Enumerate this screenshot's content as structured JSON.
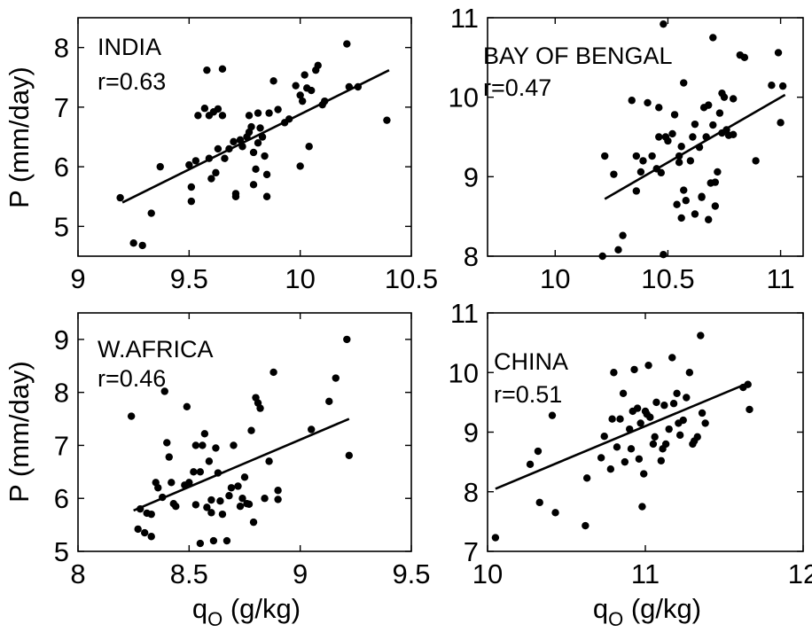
{
  "chart_data": [
    {
      "type": "scatter",
      "annotations": [
        "INDIA",
        "r=0.63"
      ],
      "xlabel": "",
      "ylabel": "P (mm/day)",
      "xlim": [
        9,
        10.5
      ],
      "ylim": [
        4.5,
        8.5
      ],
      "xticks": [
        "9",
        "9.5",
        "10",
        "10.5"
      ],
      "yticks": [
        "5",
        "6",
        "7",
        "8"
      ],
      "fit_line": [
        [
          9.2,
          5.4
        ],
        [
          10.4,
          7.62
        ]
      ],
      "points": [
        [
          9.19,
          5.48
        ],
        [
          9.25,
          4.72
        ],
        [
          9.29,
          4.68
        ],
        [
          9.33,
          5.22
        ],
        [
          9.37,
          6.0
        ],
        [
          9.5,
          6.03
        ],
        [
          9.51,
          5.66
        ],
        [
          9.51,
          5.42
        ],
        [
          9.53,
          6.1
        ],
        [
          9.54,
          6.86
        ],
        [
          9.57,
          6.98
        ],
        [
          9.58,
          7.62
        ],
        [
          9.59,
          6.86
        ],
        [
          9.59,
          6.14
        ],
        [
          9.6,
          5.8
        ],
        [
          9.61,
          6.92
        ],
        [
          9.62,
          5.9
        ],
        [
          9.63,
          6.97
        ],
        [
          9.63,
          6.3
        ],
        [
          9.65,
          7.64
        ],
        [
          9.65,
          6.86
        ],
        [
          9.66,
          6.14
        ],
        [
          9.68,
          6.3
        ],
        [
          9.7,
          6.42
        ],
        [
          9.71,
          5.55
        ],
        [
          9.71,
          5.5
        ],
        [
          9.73,
          6.45
        ],
        [
          9.74,
          6.34
        ],
        [
          9.76,
          6.5
        ],
        [
          9.77,
          6.58
        ],
        [
          9.77,
          6.86
        ],
        [
          9.78,
          6.67
        ],
        [
          9.79,
          6.24
        ],
        [
          9.79,
          5.7
        ],
        [
          9.8,
          5.96
        ],
        [
          9.81,
          6.4
        ],
        [
          9.81,
          6.9
        ],
        [
          9.82,
          6.65
        ],
        [
          9.83,
          6.5
        ],
        [
          9.84,
          6.18
        ],
        [
          9.85,
          5.87
        ],
        [
          9.85,
          5.5
        ],
        [
          9.86,
          6.9
        ],
        [
          9.88,
          7.44
        ],
        [
          9.9,
          6.96
        ],
        [
          9.93,
          6.74
        ],
        [
          9.95,
          6.8
        ],
        [
          9.98,
          7.36
        ],
        [
          10.0,
          6.01
        ],
        [
          10.0,
          7.2
        ],
        [
          10.01,
          7.1
        ],
        [
          10.02,
          7.54
        ],
        [
          10.03,
          7.32
        ],
        [
          10.04,
          6.34
        ],
        [
          10.05,
          7.28
        ],
        [
          10.07,
          7.62
        ],
        [
          10.08,
          7.7
        ],
        [
          10.1,
          7.04
        ],
        [
          10.11,
          7.1
        ],
        [
          10.21,
          8.06
        ],
        [
          10.22,
          7.34
        ],
        [
          10.26,
          7.34
        ],
        [
          10.39,
          6.78
        ]
      ]
    },
    {
      "type": "scatter",
      "annotations": [
        "BAY OF BENGAL",
        "r=0.47"
      ],
      "xlabel": "",
      "ylabel": "",
      "xlim": [
        9.7,
        11.1
      ],
      "ylim": [
        8,
        11
      ],
      "xticks": [
        "10",
        "10.5",
        "11"
      ],
      "yticks": [
        "8",
        "9",
        "10",
        "11"
      ],
      "fit_line": [
        [
          10.22,
          8.72
        ],
        [
          11.02,
          10.03
        ]
      ],
      "points": [
        [
          10.21,
          8.0
        ],
        [
          10.22,
          9.26
        ],
        [
          10.26,
          9.03
        ],
        [
          10.28,
          8.08
        ],
        [
          10.3,
          8.26
        ],
        [
          10.34,
          9.96
        ],
        [
          10.36,
          9.26
        ],
        [
          10.36,
          8.82
        ],
        [
          10.38,
          9.06
        ],
        [
          10.39,
          9.2
        ],
        [
          10.41,
          9.93
        ],
        [
          10.43,
          9.26
        ],
        [
          10.45,
          9.1
        ],
        [
          10.46,
          9.87
        ],
        [
          10.46,
          9.5
        ],
        [
          10.47,
          9.05
        ],
        [
          10.48,
          10.92
        ],
        [
          10.48,
          8.02
        ],
        [
          10.49,
          9.5
        ],
        [
          10.5,
          9.45
        ],
        [
          10.52,
          9.54
        ],
        [
          10.53,
          9.78
        ],
        [
          10.54,
          8.65
        ],
        [
          10.55,
          9.18
        ],
        [
          10.55,
          9.26
        ],
        [
          10.56,
          8.48
        ],
        [
          10.56,
          9.38
        ],
        [
          10.57,
          8.83
        ],
        [
          10.57,
          10.18
        ],
        [
          10.58,
          8.7
        ],
        [
          10.6,
          9.2
        ],
        [
          10.61,
          9.5
        ],
        [
          10.62,
          8.53
        ],
        [
          10.62,
          9.66
        ],
        [
          10.64,
          9.37
        ],
        [
          10.65,
          8.75
        ],
        [
          10.65,
          8.74
        ],
        [
          10.66,
          9.87
        ],
        [
          10.67,
          9.5
        ],
        [
          10.68,
          9.9
        ],
        [
          10.68,
          8.46
        ],
        [
          10.69,
          8.92
        ],
        [
          10.7,
          10.75
        ],
        [
          10.7,
          9.65
        ],
        [
          10.71,
          8.63
        ],
        [
          10.71,
          8.93
        ],
        [
          10.72,
          9.06
        ],
        [
          10.73,
          9.8
        ],
        [
          10.74,
          9.55
        ],
        [
          10.74,
          10.05
        ],
        [
          10.75,
          10.0
        ],
        [
          10.76,
          9.59
        ],
        [
          10.77,
          9.52
        ],
        [
          10.79,
          9.98
        ],
        [
          10.79,
          9.53
        ],
        [
          10.82,
          10.53
        ],
        [
          10.84,
          10.5
        ],
        [
          10.89,
          9.2
        ],
        [
          10.96,
          10.15
        ],
        [
          10.99,
          10.56
        ],
        [
          11.0,
          9.68
        ],
        [
          11.01,
          10.14
        ]
      ]
    },
    {
      "type": "scatter",
      "annotations": [
        "W.AFRICA",
        "r=0.46"
      ],
      "xlabel": "q_O (g/kg)",
      "ylabel": "P (mm/day)",
      "xlim": [
        8,
        9.5
      ],
      "ylim": [
        5,
        9.5
      ],
      "xticks": [
        "8",
        "8.5",
        "9",
        "9.5"
      ],
      "yticks": [
        "5",
        "6",
        "7",
        "8",
        "9"
      ],
      "fit_line": [
        [
          8.25,
          5.77
        ],
        [
          9.22,
          7.5
        ]
      ],
      "points": [
        [
          8.24,
          7.55
        ],
        [
          8.27,
          5.42
        ],
        [
          8.28,
          5.8
        ],
        [
          8.3,
          5.35
        ],
        [
          8.31,
          5.72
        ],
        [
          8.33,
          5.28
        ],
        [
          8.33,
          5.7
        ],
        [
          8.35,
          6.3
        ],
        [
          8.36,
          6.2
        ],
        [
          8.38,
          6.02
        ],
        [
          8.39,
          8.02
        ],
        [
          8.4,
          7.05
        ],
        [
          8.41,
          6.78
        ],
        [
          8.42,
          6.3
        ],
        [
          8.43,
          5.9
        ],
        [
          8.44,
          5.85
        ],
        [
          8.48,
          6.25
        ],
        [
          8.49,
          7.73
        ],
        [
          8.5,
          6.3
        ],
        [
          8.52,
          6.5
        ],
        [
          8.53,
          7.0
        ],
        [
          8.53,
          5.88
        ],
        [
          8.55,
          5.15
        ],
        [
          8.55,
          6.5
        ],
        [
          8.56,
          7.0
        ],
        [
          8.57,
          7.22
        ],
        [
          8.58,
          5.83
        ],
        [
          8.59,
          6.7
        ],
        [
          8.6,
          5.97
        ],
        [
          8.6,
          5.73
        ],
        [
          8.61,
          5.2
        ],
        [
          8.62,
          6.95
        ],
        [
          8.63,
          6.48
        ],
        [
          8.64,
          5.95
        ],
        [
          8.65,
          5.7
        ],
        [
          8.67,
          5.2
        ],
        [
          8.68,
          6.05
        ],
        [
          8.69,
          6.2
        ],
        [
          8.7,
          7.0
        ],
        [
          8.72,
          6.23
        ],
        [
          8.73,
          5.85
        ],
        [
          8.74,
          6.0
        ],
        [
          8.75,
          6.4
        ],
        [
          8.76,
          5.9
        ],
        [
          8.77,
          5.89
        ],
        [
          8.78,
          7.28
        ],
        [
          8.79,
          5.55
        ],
        [
          8.8,
          7.9
        ],
        [
          8.81,
          7.8
        ],
        [
          8.82,
          7.7
        ],
        [
          8.84,
          6.0
        ],
        [
          8.86,
          6.7
        ],
        [
          8.88,
          8.38
        ],
        [
          8.9,
          6.15
        ],
        [
          8.9,
          5.98
        ],
        [
          9.05,
          7.3
        ],
        [
          9.13,
          7.83
        ],
        [
          9.16,
          8.27
        ],
        [
          9.21,
          9.0
        ],
        [
          9.22,
          6.81
        ]
      ]
    },
    {
      "type": "scatter",
      "annotations": [
        "CHINA",
        "r=0.51"
      ],
      "xlabel": "q_O (g/kg)",
      "ylabel": "",
      "xlim": [
        10,
        12
      ],
      "ylim": [
        7,
        11
      ],
      "xticks": [
        "10",
        "11",
        "12"
      ],
      "yticks": [
        "7",
        "8",
        "9",
        "10",
        "11"
      ],
      "fit_line": [
        [
          10.05,
          8.05
        ],
        [
          11.65,
          9.82
        ]
      ],
      "points": [
        [
          10.05,
          7.23
        ],
        [
          10.27,
          8.46
        ],
        [
          10.32,
          8.68
        ],
        [
          10.33,
          7.82
        ],
        [
          10.41,
          9.28
        ],
        [
          10.43,
          7.65
        ],
        [
          10.62,
          7.43
        ],
        [
          10.63,
          8.23
        ],
        [
          10.72,
          8.57
        ],
        [
          10.74,
          8.93
        ],
        [
          10.78,
          8.38
        ],
        [
          10.79,
          9.22
        ],
        [
          10.8,
          10.0
        ],
        [
          10.82,
          8.75
        ],
        [
          10.84,
          9.22
        ],
        [
          10.86,
          9.65
        ],
        [
          10.87,
          8.5
        ],
        [
          10.9,
          9.05
        ],
        [
          10.91,
          8.72
        ],
        [
          10.92,
          9.35
        ],
        [
          10.93,
          10.05
        ],
        [
          10.95,
          9.4
        ],
        [
          10.96,
          8.55
        ],
        [
          10.97,
          9.15
        ],
        [
          10.98,
          7.75
        ],
        [
          10.99,
          8.3
        ],
        [
          11.0,
          9.35
        ],
        [
          11.01,
          9.3
        ],
        [
          11.02,
          10.12
        ],
        [
          11.03,
          9.25
        ],
        [
          11.05,
          8.8
        ],
        [
          11.06,
          8.92
        ],
        [
          11.07,
          9.5
        ],
        [
          11.1,
          8.52
        ],
        [
          11.11,
          8.72
        ],
        [
          11.12,
          9.45
        ],
        [
          11.13,
          8.8
        ],
        [
          11.15,
          9.05
        ],
        [
          11.17,
          10.25
        ],
        [
          11.18,
          9.48
        ],
        [
          11.2,
          9.65
        ],
        [
          11.21,
          9.15
        ],
        [
          11.22,
          8.95
        ],
        [
          11.24,
          9.2
        ],
        [
          11.26,
          9.58
        ],
        [
          11.28,
          10.0
        ],
        [
          11.3,
          8.8
        ],
        [
          11.31,
          8.85
        ],
        [
          11.33,
          8.92
        ],
        [
          11.35,
          10.62
        ],
        [
          11.36,
          9.32
        ],
        [
          11.38,
          9.15
        ],
        [
          11.62,
          9.75
        ],
        [
          11.65,
          9.8
        ],
        [
          11.66,
          9.38
        ]
      ]
    }
  ]
}
